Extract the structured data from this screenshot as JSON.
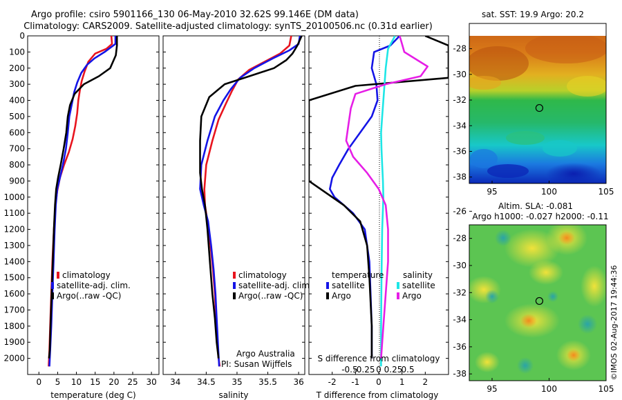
{
  "header": {
    "line1": "Argo profile: csiro 5901166_130 06-May-2010 32.62S 99.146E (DM data)",
    "line2": "Climatology: CARS2009. Satellite-adjusted climatology: synTS_20100506.nc (0.31d earlier)"
  },
  "side_stamp": "©IMOS 02-Aug-2017 19:44:36",
  "colors": {
    "red": "#e8141e",
    "blue": "#1414e6",
    "black": "#000000",
    "cyan": "#1ee6e6",
    "magenta": "#e61ee6"
  },
  "chart_data": [
    {
      "type": "line",
      "id": "temperature",
      "xlabel": "temperature (deg C)",
      "ylabel": "",
      "xlim": [
        -3,
        32
      ],
      "ylim": [
        2100,
        0
      ],
      "xticks": [
        0,
        5,
        10,
        15,
        20,
        25,
        30
      ],
      "yticks": [
        0,
        100,
        200,
        300,
        400,
        500,
        600,
        700,
        800,
        900,
        1000,
        1100,
        1200,
        1300,
        1400,
        1500,
        1600,
        1700,
        1800,
        1900,
        2000
      ],
      "legend": {
        "placement": "lower-right",
        "items": [
          "climatology",
          "satellite-adj. clim.",
          "Argo(..raw -QC)"
        ]
      },
      "series": [
        {
          "name": "climatology",
          "color": "red",
          "x": [
            19.3,
            19.5,
            18.0,
            15.0,
            13.2,
            12.2,
            11.4,
            10.9,
            10.5,
            10.2,
            9.7,
            9.0,
            8.0,
            6.7,
            5.6,
            4.9,
            4.4,
            4.0,
            3.6,
            3.3,
            3.0,
            2.8,
            2.6
          ],
          "y": [
            0,
            50,
            80,
            110,
            160,
            220,
            280,
            340,
            400,
            480,
            560,
            640,
            720,
            800,
            880,
            960,
            1050,
            1200,
            1400,
            1600,
            1800,
            1950,
            2050
          ]
        },
        {
          "name": "satellite-adj. clim.",
          "color": "blue",
          "x": [
            20.4,
            20.4,
            17.5,
            14.8,
            12.8,
            11.3,
            10.2,
            9.4,
            8.8,
            8.1,
            7.7,
            7.2,
            6.4,
            5.6,
            4.9,
            4.5,
            4.2,
            3.9,
            3.6,
            3.3,
            3.0,
            2.8
          ],
          "y": [
            0,
            50,
            100,
            140,
            180,
            230,
            290,
            350,
            420,
            500,
            600,
            700,
            800,
            880,
            950,
            1050,
            1200,
            1400,
            1600,
            1800,
            1950,
            2050
          ]
        },
        {
          "name": "Argo(..raw -QC)",
          "color": "black",
          "x": [
            20.8,
            20.8,
            20.5,
            19.0,
            16.0,
            12.0,
            9.5,
            8.3,
            7.7,
            7.3,
            6.6,
            5.8,
            5.1,
            4.6,
            4.3,
            4.0,
            3.7,
            3.4,
            3.1,
            2.9,
            2.7
          ],
          "y": [
            0,
            60,
            120,
            200,
            250,
            300,
            360,
            430,
            500,
            600,
            700,
            800,
            880,
            950,
            1050,
            1200,
            1400,
            1600,
            1800,
            1950,
            2000
          ]
        }
      ]
    },
    {
      "type": "line",
      "id": "salinity",
      "xlabel": "salinity",
      "ylabel": "",
      "xlim": [
        33.8,
        36.1
      ],
      "ylim": [
        2100,
        0
      ],
      "xticks": [
        34,
        34.5,
        35,
        35.5,
        36
      ],
      "xticklabels": [
        "34",
        "34.5",
        "35",
        "35.5",
        "36"
      ],
      "legend": {
        "placement": "lower-right",
        "items": [
          "climatology",
          "satellite-adj. clim.",
          "Argo(..raw -QC)"
        ]
      },
      "annotation": [
        "Argo Australia",
        "PI: Susan Wijffels"
      ],
      "series": [
        {
          "name": "climatology",
          "color": "red",
          "x": [
            35.88,
            35.85,
            35.7,
            35.45,
            35.2,
            35.02,
            34.92,
            34.82,
            34.7,
            34.6,
            34.5,
            34.47,
            34.48,
            34.52,
            34.57,
            34.61,
            34.64,
            34.66,
            34.68,
            34.7,
            34.72
          ],
          "y": [
            0,
            60,
            110,
            160,
            210,
            270,
            340,
            420,
            520,
            650,
            800,
            950,
            1050,
            1150,
            1300,
            1450,
            1600,
            1750,
            1900,
            2000,
            2050
          ]
        },
        {
          "name": "satellite-adj. clim.",
          "color": "blue",
          "x": [
            36.02,
            36.0,
            35.85,
            35.58,
            35.28,
            35.05,
            34.9,
            34.78,
            34.64,
            34.52,
            34.42,
            34.4,
            34.46,
            34.53,
            34.58,
            34.62,
            34.65,
            34.67,
            34.69,
            34.71
          ],
          "y": [
            0,
            50,
            90,
            140,
            200,
            260,
            330,
            400,
            500,
            650,
            800,
            950,
            1050,
            1150,
            1300,
            1450,
            1600,
            1750,
            1900,
            2050
          ]
        },
        {
          "name": "Argo(..raw -QC)",
          "color": "black",
          "x": [
            36.05,
            35.98,
            35.9,
            35.8,
            35.6,
            35.2,
            34.8,
            34.55,
            34.42,
            34.4,
            34.4,
            34.43,
            34.48,
            34.52,
            34.56,
            34.6,
            34.64,
            34.67,
            34.7
          ],
          "y": [
            0,
            60,
            110,
            150,
            200,
            250,
            300,
            380,
            500,
            650,
            850,
            950,
            1050,
            1200,
            1400,
            1600,
            1750,
            1900,
            2000
          ]
        }
      ]
    },
    {
      "type": "line",
      "id": "difference",
      "xlabel": "T difference from climatology",
      "xlabel_top": "S difference from climatology",
      "xlim": [
        -3,
        3
      ],
      "ylim": [
        2100,
        0
      ],
      "xticks": [
        -2,
        -1,
        0,
        1,
        2
      ],
      "top_ticks": [
        -0.5,
        -0.25,
        0,
        0.25,
        0.5
      ],
      "top_ticklabels": [
        "-0.5",
        "-0.25",
        "0",
        "0.25",
        "0.5"
      ],
      "legend": {
        "placement": "lower-right",
        "temperature_heading": "temperature",
        "salinity_heading": "salinity",
        "items": [
          "satellite",
          "Argo",
          "satellite",
          "Argo"
        ]
      },
      "series": [
        {
          "name": "temperature satellite",
          "color": "blue",
          "x": [
            0.9,
            0.5,
            -0.2,
            -0.3,
            -0.1,
            -0.05,
            -0.3,
            -0.8,
            -1.3,
            -1.7,
            -2.0,
            -2.1,
            -1.9,
            -1.5,
            -1.1,
            -0.6,
            -0.4,
            -0.35,
            -0.3,
            -0.3,
            -0.3
          ],
          "y": [
            0,
            60,
            100,
            200,
            300,
            400,
            500,
            600,
            700,
            800,
            880,
            950,
            1000,
            1050,
            1100,
            1200,
            1400,
            1600,
            1800,
            1950,
            2000
          ]
        },
        {
          "name": "temperature Argo",
          "color": "black",
          "x": [
            2.0,
            3.0,
            3.0,
            3.0,
            -1.0,
            -3.0,
            -3.0,
            -3.0,
            -3.0,
            -1.5,
            -0.8,
            -0.5,
            -0.4,
            -0.3,
            -0.3
          ],
          "y": [
            0,
            60,
            90,
            260,
            310,
            400,
            600,
            800,
            900,
            1050,
            1150,
            1300,
            1500,
            1800,
            2000
          ]
        },
        {
          "name": "salinity satellite",
          "color": "cyan",
          "x": [
            0.7,
            0.4,
            0.3,
            0.25,
            0.2,
            0.15,
            0.1,
            0.12,
            0.15,
            0.18,
            0.2,
            0.15,
            0.12,
            0.1,
            0.1
          ],
          "y": [
            0,
            80,
            200,
            300,
            400,
            500,
            600,
            700,
            800,
            900,
            1000,
            1200,
            1500,
            1800,
            2050
          ]
        },
        {
          "name": "salinity Argo",
          "color": "magenta",
          "x": [
            0.9,
            1.0,
            1.1,
            2.1,
            1.8,
            0.3,
            -1.0,
            -1.2,
            -1.3,
            -1.4,
            -1.1,
            -0.5,
            0.0,
            0.3,
            0.4,
            0.4,
            0.3,
            0.2,
            0.1
          ],
          "y": [
            0,
            50,
            100,
            190,
            250,
            300,
            360,
            450,
            550,
            650,
            750,
            850,
            950,
            1050,
            1200,
            1400,
            1600,
            1800,
            2000
          ]
        }
      ]
    },
    {
      "type": "heatmap",
      "id": "sst_map",
      "title": "sat. SST: 19.9 Argo: 20.2",
      "xlim": [
        93,
        105
      ],
      "ylim": [
        -38.5,
        -27
      ],
      "xticks": [
        95,
        100,
        105
      ],
      "yticks": [
        -28,
        -30,
        -32,
        -34,
        -36,
        -38
      ],
      "marker": {
        "lon": 99.146,
        "lat": -32.62
      }
    },
    {
      "type": "heatmap",
      "id": "sla_map",
      "title": "Altim. SLA: -0.081",
      "subtitle": "Argo h1000: -0.027 h2000: -0.11",
      "xlim": [
        93,
        105
      ],
      "ylim": [
        -38.5,
        -27
      ],
      "xticks": [
        95,
        100,
        105
      ],
      "yticks": [
        -26,
        -28,
        -30,
        -32,
        -34,
        -36,
        -38
      ],
      "marker": {
        "lon": 99.146,
        "lat": -32.62
      }
    }
  ]
}
